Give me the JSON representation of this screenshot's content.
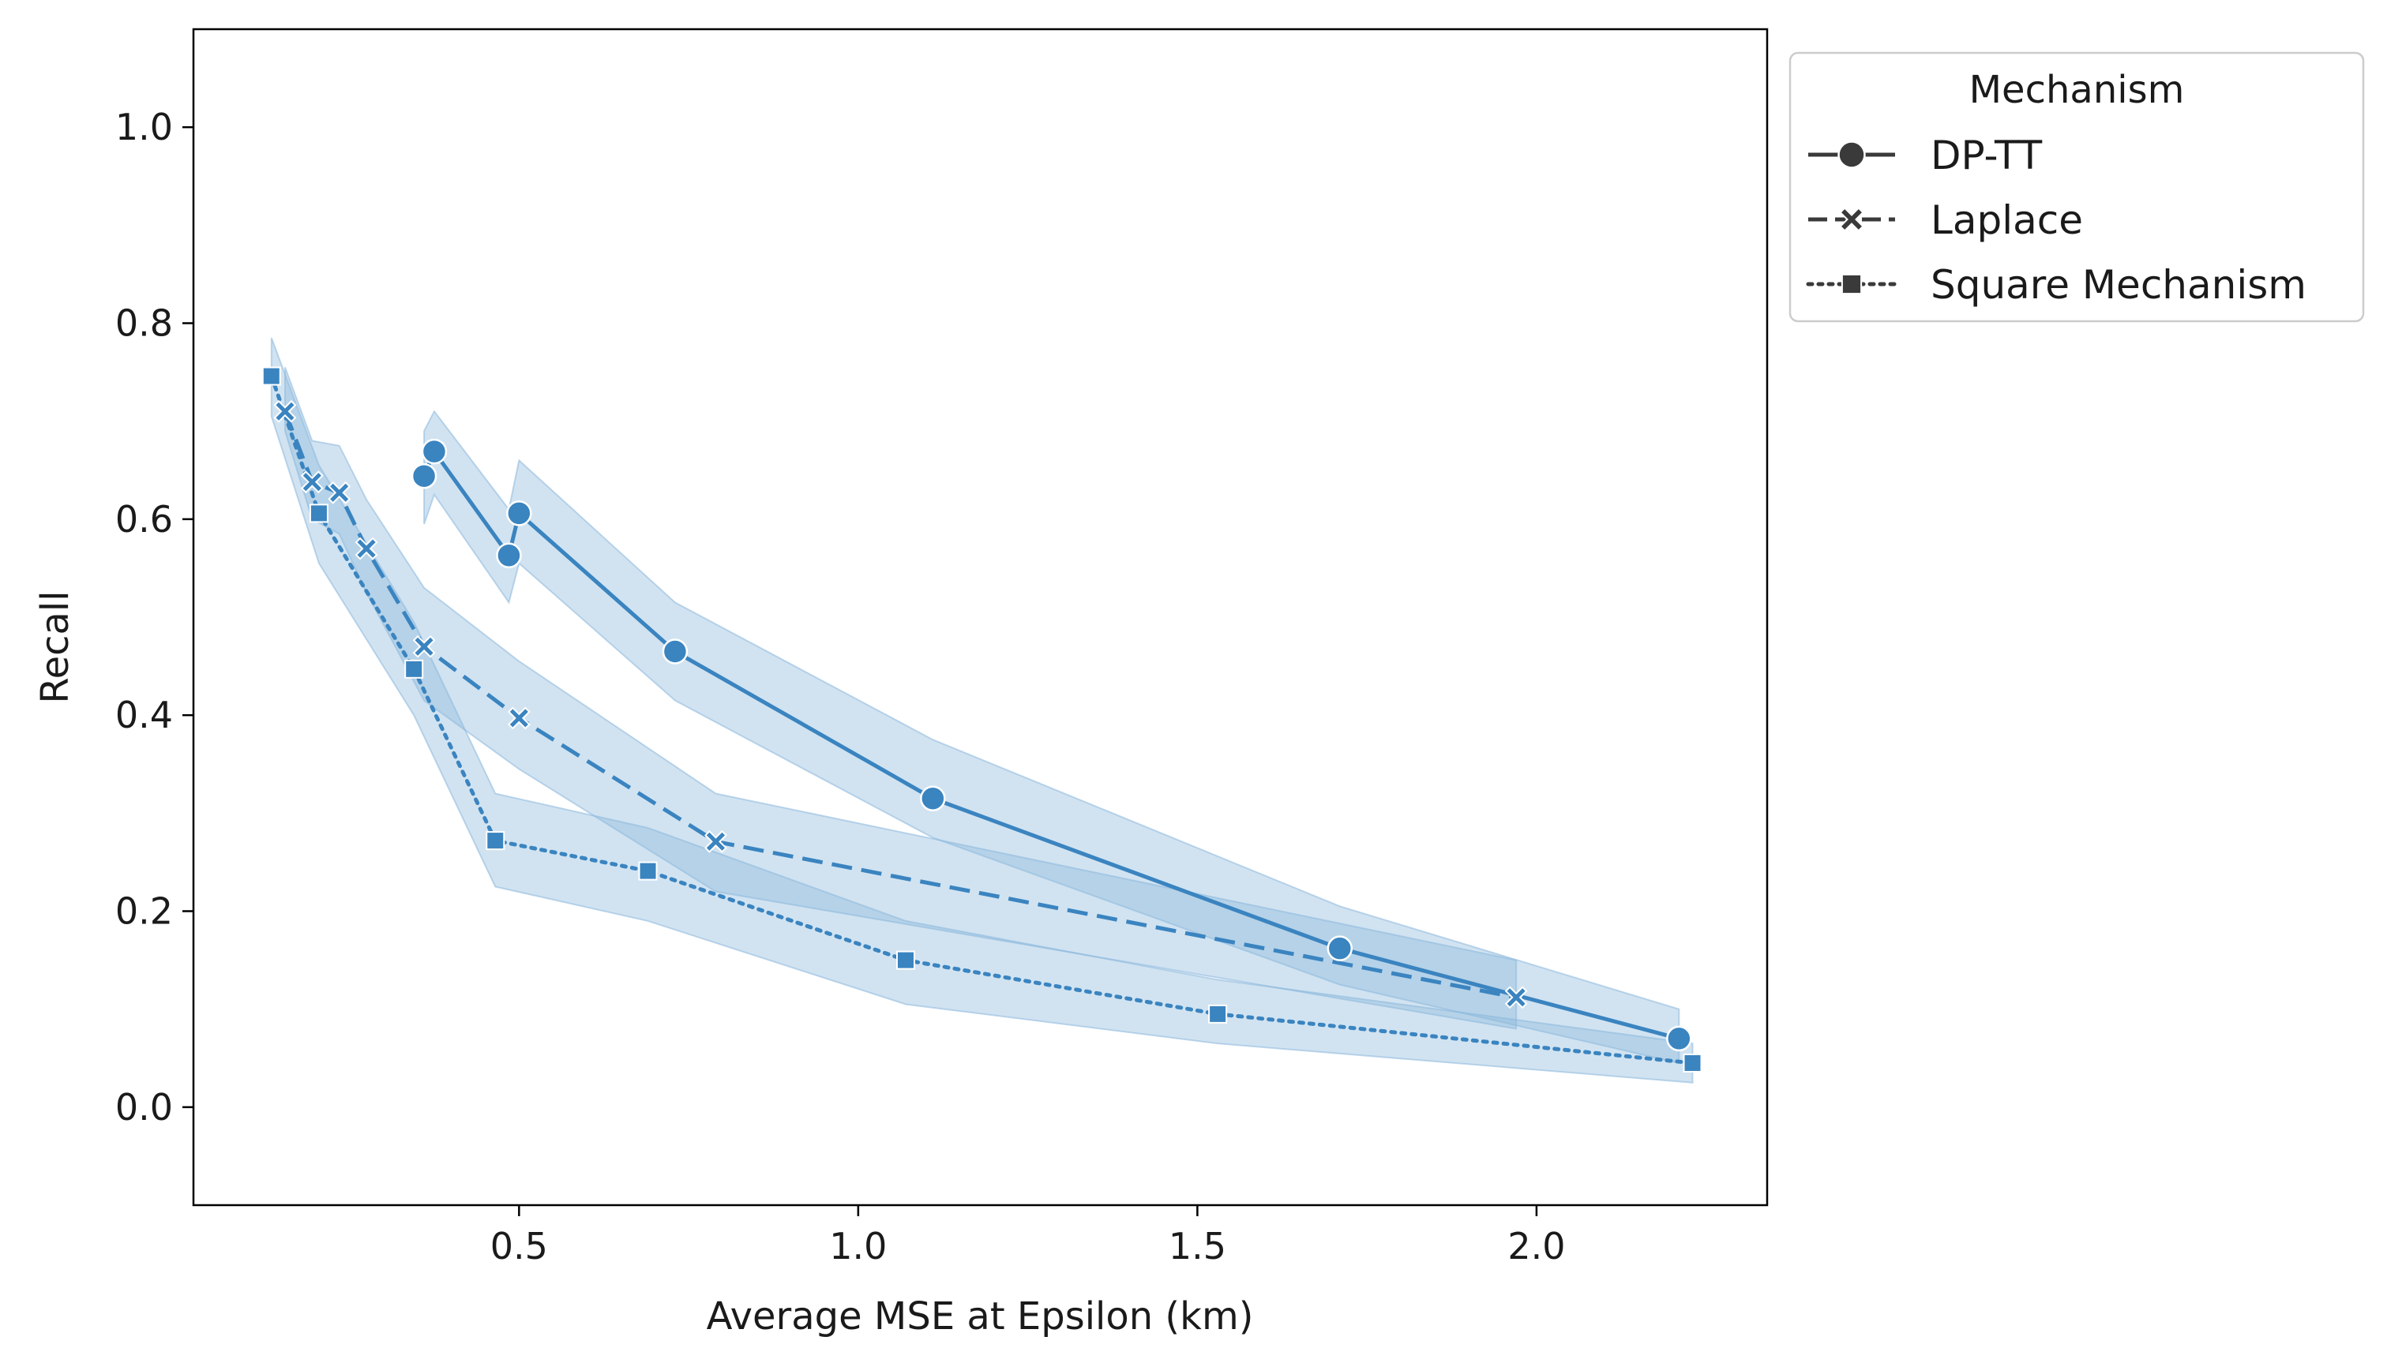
{
  "chart_data": {
    "type": "line",
    "title": "",
    "xlabel": "Average MSE at Epsilon (km)",
    "ylabel": "Recall",
    "xlim": [
      0.02,
      2.34
    ],
    "ylim": [
      -0.1,
      1.1
    ],
    "xticks": [
      0.5,
      1.0,
      1.5,
      2.0
    ],
    "xtick_labels": [
      "0.5",
      "1.0",
      "1.5",
      "2.0"
    ],
    "yticks": [
      0.0,
      0.2,
      0.4,
      0.6,
      0.8,
      1.0
    ],
    "ytick_labels": [
      "0.0",
      "0.2",
      "0.4",
      "0.6",
      "0.8",
      "1.0"
    ],
    "grid": false,
    "legend": {
      "title": "Mechanism",
      "placement": "outside-upper-right"
    },
    "color": "#3a84c0",
    "band_color": "#8cb8dc",
    "series": [
      {
        "name": "DP-TT",
        "marker": "circle",
        "linestyle": "solid",
        "x": [
          0.36,
          0.375,
          0.485,
          0.5,
          0.73,
          1.11,
          1.71,
          2.21
        ],
        "y": [
          0.644,
          0.669,
          0.563,
          0.606,
          0.465,
          0.315,
          0.162,
          0.07
        ],
        "lower": [
          0.595,
          0.625,
          0.515,
          0.555,
          0.415,
          0.275,
          0.125,
          0.045
        ],
        "upper": [
          0.69,
          0.71,
          0.61,
          0.66,
          0.515,
          0.375,
          0.205,
          0.1
        ]
      },
      {
        "name": "Laplace",
        "marker": "x",
        "linestyle": "dashed",
        "x": [
          0.155,
          0.195,
          0.235,
          0.275,
          0.36,
          0.5,
          0.79,
          1.97
        ],
        "y": [
          0.71,
          0.638,
          0.627,
          0.57,
          0.47,
          0.397,
          0.271,
          0.112
        ],
        "lower": [
          0.69,
          0.6,
          0.585,
          0.525,
          0.415,
          0.345,
          0.22,
          0.08
        ],
        "upper": [
          0.755,
          0.68,
          0.675,
          0.62,
          0.53,
          0.455,
          0.32,
          0.15
        ]
      },
      {
        "name": "Square Mechanism",
        "marker": "square",
        "linestyle": "dotted",
        "x": [
          0.135,
          0.205,
          0.345,
          0.465,
          0.69,
          1.07,
          1.53,
          2.23
        ],
        "y": [
          0.746,
          0.606,
          0.447,
          0.272,
          0.241,
          0.15,
          0.095,
          0.045
        ],
        "lower": [
          0.705,
          0.555,
          0.4,
          0.225,
          0.19,
          0.105,
          0.065,
          0.025
        ],
        "upper": [
          0.785,
          0.655,
          0.495,
          0.32,
          0.285,
          0.19,
          0.13,
          0.065
        ]
      }
    ]
  }
}
